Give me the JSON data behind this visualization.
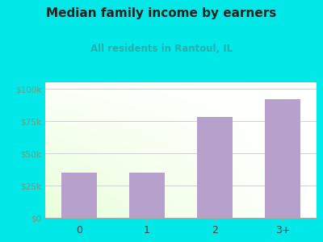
{
  "title": "Median family income by earners",
  "subtitle": "All residents in Rantoul, IL",
  "categories": [
    "0",
    "1",
    "2",
    "3+"
  ],
  "values": [
    35000,
    35000,
    78000,
    92000
  ],
  "bar_color": "#b8a0cc",
  "title_color": "#222222",
  "subtitle_color": "#2aadad",
  "background_color": "#00e8e8",
  "yticks": [
    0,
    25000,
    50000,
    75000,
    100000
  ],
  "ytick_labels": [
    "$0",
    "$25k",
    "$50k",
    "$75k",
    "$100k"
  ],
  "ylim": [
    0,
    105000
  ],
  "tick_color": "#7a9a7a"
}
